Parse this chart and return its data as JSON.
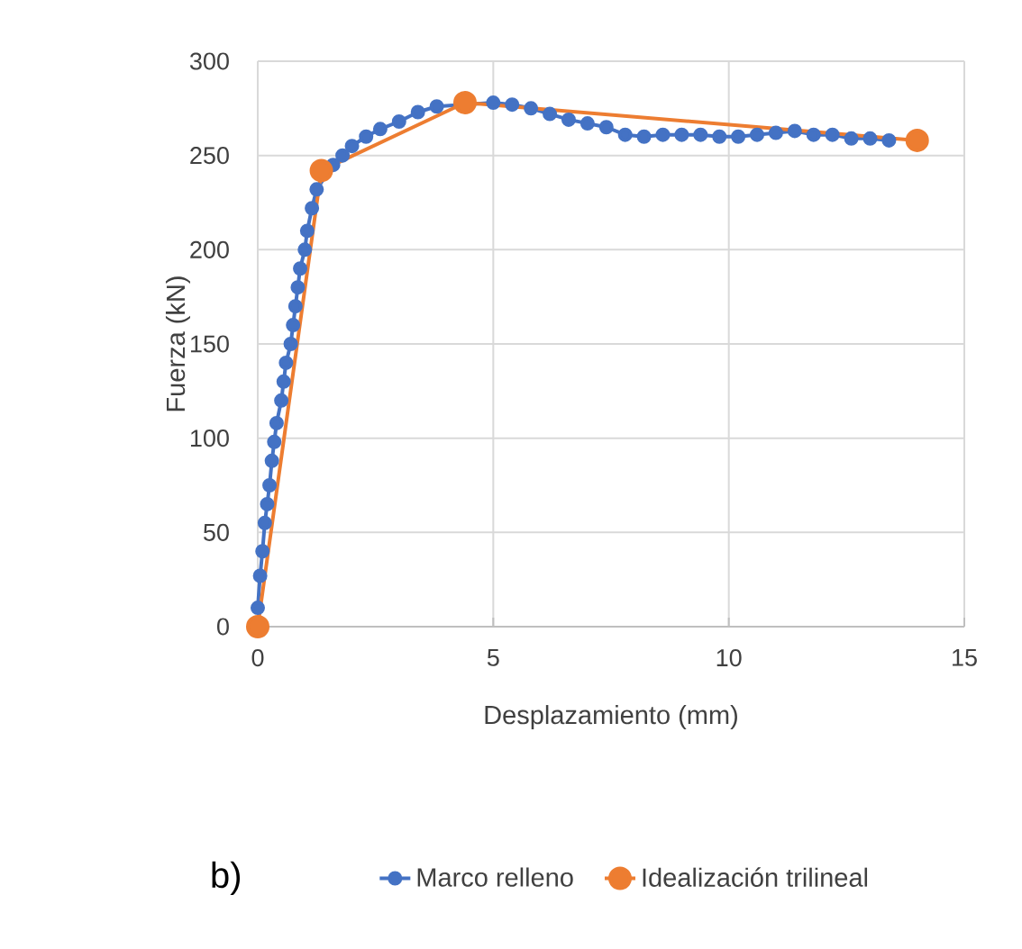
{
  "chart_data": {
    "type": "line",
    "xlabel": "Desplazamiento (mm)",
    "ylabel": "Fuerza (kN)",
    "xlim": [
      0,
      15
    ],
    "ylim": [
      0,
      300
    ],
    "xticks": [
      0,
      5,
      10,
      15
    ],
    "yticks": [
      0,
      50,
      100,
      150,
      200,
      250,
      300
    ],
    "grid": true,
    "legend": "bottom",
    "marker": "circle",
    "line_style": "solid",
    "annotations": [
      "b)"
    ],
    "series": [
      {
        "name": "Marco relleno",
        "color": "#4472c4",
        "x": [
          0.0,
          0.05,
          0.1,
          0.15,
          0.2,
          0.25,
          0.3,
          0.35,
          0.4,
          0.5,
          0.55,
          0.6,
          0.7,
          0.75,
          0.8,
          0.85,
          0.9,
          1.0,
          1.05,
          1.15,
          1.25,
          1.4,
          1.6,
          1.8,
          2.0,
          2.3,
          2.6,
          3.0,
          3.4,
          3.8,
          4.2,
          4.6,
          5.0,
          5.4,
          5.8,
          6.2,
          6.6,
          7.0,
          7.4,
          7.8,
          8.2,
          8.6,
          9.0,
          9.4,
          9.8,
          10.2,
          10.6,
          11.0,
          11.4,
          11.8,
          12.2,
          12.6,
          13.0,
          13.4
        ],
        "values": [
          10,
          27,
          40,
          55,
          65,
          75,
          88,
          98,
          108,
          120,
          130,
          140,
          150,
          160,
          170,
          180,
          190,
          200,
          210,
          222,
          232,
          null,
          245,
          250,
          255,
          260,
          264,
          268,
          273,
          276,
          null,
          null,
          278,
          277,
          275,
          272,
          269,
          267,
          265,
          261,
          260,
          261,
          261,
          261,
          260,
          260,
          261,
          262,
          263,
          261,
          261,
          259,
          259,
          258
        ]
      },
      {
        "name": "Idealización trilineal",
        "color": "#ed7d31",
        "x": [
          0,
          1.35,
          4.4,
          14
        ],
        "values": [
          0,
          242,
          278,
          258
        ]
      }
    ]
  }
}
